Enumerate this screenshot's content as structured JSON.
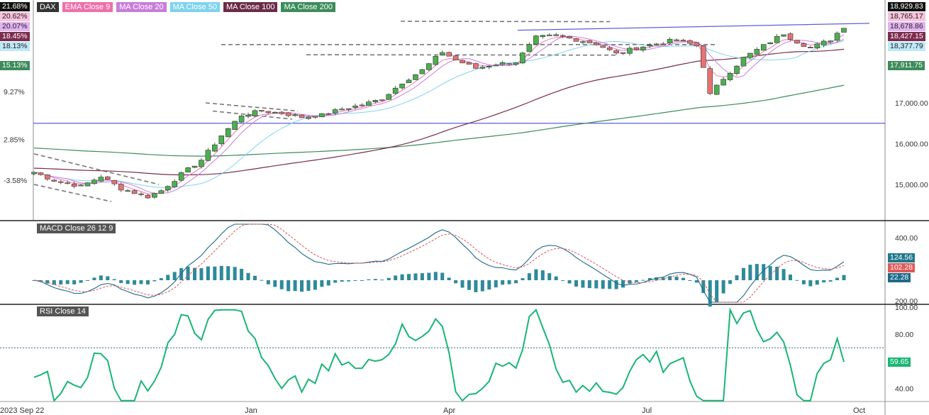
{
  "app": {
    "symbol": "DAX"
  },
  "colors": {
    "price_up": "#4caf50",
    "price_down": "#e57373",
    "ema9": "#e879b8",
    "ma20": "#c77ddb",
    "ma50": "#7fd3ee",
    "ma100": "#7b2d4e",
    "ma200": "#3c8c5a",
    "trend_line": "#5b5fe0",
    "dash_line": "#777777",
    "macd": "#1c6a8a",
    "macd_signal": "#d9534f",
    "macd_hist": "#2e8a99",
    "rsi": "#1ab574"
  },
  "legend": [
    {
      "label": "DAX",
      "color": "#333333"
    },
    {
      "label": "EMA Close 9",
      "color": "#f06fa8"
    },
    {
      "label": "MA Close 20",
      "color": "#c77ddb"
    },
    {
      "label": "MA Close 50",
      "color": "#7fd3ee"
    },
    {
      "label": "MA Close 100",
      "color": "#6b2c47"
    },
    {
      "label": "MA Close 200",
      "color": "#3c8c5a"
    }
  ],
  "left_tags": [
    {
      "label": "21.68%",
      "bg": "#111111",
      "fg": "#ffffff"
    },
    {
      "label": "20.62%",
      "bg": "#f7c3dc",
      "fg": "#222222"
    },
    {
      "label": "20.07%",
      "bg": "#e2b3f0",
      "fg": "#222222"
    },
    {
      "label": "18.45%",
      "bg": "#7b2d4e",
      "fg": "#ffffff"
    },
    {
      "label": "18.13%",
      "bg": "#bfe9f7",
      "fg": "#222222"
    },
    {
      "label": "15.13%",
      "bg": "#3c8c5a",
      "fg": "#ffffff"
    }
  ],
  "right_tags": [
    {
      "label": "18,929.83",
      "bg": "#111111",
      "fg": "#ffffff"
    },
    {
      "label": "18,765.17",
      "bg": "#f7c3dc",
      "fg": "#222222"
    },
    {
      "label": "18,678.86",
      "bg": "#e2b3f0",
      "fg": "#222222"
    },
    {
      "label": "18,427.15",
      "bg": "#7b2d4e",
      "fg": "#ffffff"
    },
    {
      "label": "18,377.79",
      "bg": "#bfe9f7",
      "fg": "#222222"
    },
    {
      "label": "17,911.75",
      "bg": "#3c8c5a",
      "fg": "#ffffff"
    }
  ],
  "macd_pane": {
    "title": "MACD Close 26 12 9",
    "tags": [
      {
        "label": "124.56",
        "bg": "#1f7a8c",
        "fg": "#ffffff"
      },
      {
        "label": "102.28",
        "bg": "#e05a5a",
        "fg": "#ffffff"
      },
      {
        "label": "22.28",
        "bg": "#1c6a8a",
        "fg": "#ffffff"
      }
    ]
  },
  "rsi_pane": {
    "title": "RSI Close 14",
    "tags": [
      {
        "label": "59.65",
        "bg": "#1ab574",
        "fg": "#ffffff"
      }
    ]
  },
  "chart_data": [
    {
      "type": "candlestick",
      "title": "DAX",
      "x_labels": [
        "2023 Sep 22",
        "Jan",
        "Apr",
        "Jul",
        "Oct"
      ],
      "y_ticks_right": [
        "15,000.00",
        "16,000.00",
        "17,000.00"
      ],
      "y_ticks_left": [
        "9.27%",
        "2.85%",
        "-3.58%"
      ],
      "ylim": [
        14200,
        19200
      ],
      "close_last": 18929.83,
      "anchors": [
        [
          0,
          15300
        ],
        [
          3,
          15100
        ],
        [
          7,
          14950
        ],
        [
          10,
          15200
        ],
        [
          13,
          14900
        ],
        [
          17,
          14700
        ],
        [
          19,
          14850
        ],
        [
          22,
          15250
        ],
        [
          25,
          15600
        ],
        [
          28,
          16200
        ],
        [
          31,
          16700
        ],
        [
          34,
          16800
        ],
        [
          37,
          16750
        ],
        [
          40,
          16650
        ],
        [
          43,
          16700
        ],
        [
          46,
          16850
        ],
        [
          49,
          16950
        ],
        [
          52,
          17100
        ],
        [
          55,
          17500
        ],
        [
          58,
          17800
        ],
        [
          61,
          18250
        ],
        [
          63,
          18050
        ],
        [
          66,
          17850
        ],
        [
          69,
          17950
        ],
        [
          72,
          18000
        ],
        [
          75,
          18600
        ],
        [
          78,
          18650
        ],
        [
          81,
          18550
        ],
        [
          84,
          18450
        ],
        [
          87,
          18200
        ],
        [
          90,
          18350
        ],
        [
          93,
          18450
        ],
        [
          96,
          18550
        ],
        [
          99,
          18400
        ],
        [
          100,
          17900
        ],
        [
          101,
          17200
        ],
        [
          103,
          17600
        ],
        [
          106,
          18100
        ],
        [
          109,
          18400
        ],
        [
          112,
          18700
        ],
        [
          114,
          18500
        ],
        [
          116,
          18350
        ],
        [
          119,
          18550
        ],
        [
          121,
          18870
        ]
      ],
      "series": [
        {
          "name": "EMA Close 9",
          "last": 18765.17
        },
        {
          "name": "MA Close 20",
          "last": 18678.86
        },
        {
          "name": "MA Close 50",
          "last": 18377.79
        },
        {
          "name": "MA Close 100",
          "last": 18427.15
        },
        {
          "name": "MA Close 200",
          "last": 17911.75
        }
      ],
      "horizontal_line": 16500
    },
    {
      "type": "line",
      "title": "MACD Close 26 12 9",
      "y_ticks": [
        "400.00",
        "200.00"
      ],
      "values": {
        "macd": 124.56,
        "signal": 102.28,
        "histogram": 22.28
      }
    },
    {
      "type": "line",
      "title": "RSI Close 14",
      "y_ticks": [
        "100.00",
        "80.00",
        "40.00"
      ],
      "ylim": [
        30,
        100
      ],
      "overbought": 70,
      "last": 59.65
    }
  ]
}
